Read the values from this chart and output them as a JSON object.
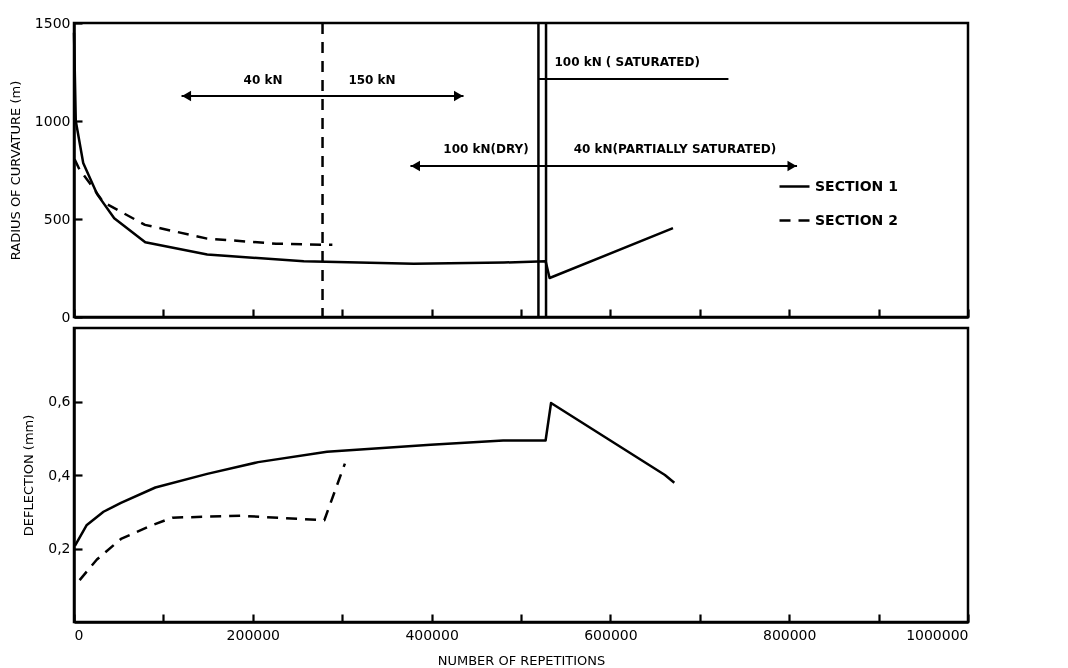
{
  "chart_data": [
    {
      "type": "line",
      "ylabel": "RADIUS OF CURVATURE (m)",
      "xlim": [
        0,
        1000000
      ],
      "xticks": [
        0,
        100000,
        200000,
        300000,
        400000,
        500000,
        600000,
        700000,
        800000,
        900000,
        1000000
      ],
      "ylim": [
        0,
        1500
      ],
      "yticks": [
        0,
        500,
        1000,
        1500
      ],
      "tick_labels": "y",
      "legend": "right",
      "grid": false,
      "series": [
        {
          "name": "SECTION 1",
          "color": "#000000",
          "line_style": "solid",
          "x": [
            0,
            2000,
            10300,
            25800,
            45000,
            79700,
            149000,
            257000,
            380000,
            481000,
            527500,
            532000,
            670000
          ],
          "values": [
            1450,
            1000,
            786,
            627,
            504,
            381,
            319,
            284,
            272,
            278,
            285,
            199,
            453
          ]
        },
        {
          "name": "SECTION 2",
          "color": "#000000",
          "line_style": "dashed",
          "x": [
            700,
            6200,
            17900,
            33000,
            79400,
            149000,
            226000,
            289000
          ],
          "values": [
            805,
            752,
            681,
            585,
            470,
            400,
            374,
            368
          ]
        }
      ],
      "ref_lines": [
        {
          "axis": "x",
          "value": 278000,
          "color": "#000000",
          "line_style": "dashed"
        },
        {
          "axis": "x",
          "value": 519500,
          "color": "#000000",
          "line_style": "solid"
        },
        {
          "axis": "x",
          "value": 528000,
          "color": "#000000",
          "line_style": "solid"
        }
      ],
      "annotations": [
        "40 kN",
        "150 kN",
        {
          "text": "100 kN ( SATURATED)",
          "x": 519500,
          "y": 1214
        },
        "100 kN(DRY)",
        "40 kN(PARTIALLY SATURATED)"
      ]
    },
    {
      "type": "line",
      "xlabel": "NUMBER OF REPETITIONS",
      "ylabel": "DEFLECTION (mm)",
      "xlim": [
        0,
        1000000
      ],
      "xticks": [
        0,
        {
          "value": 100000,
          "label": null
        },
        200000,
        {
          "value": 300000,
          "label": null
        },
        400000,
        {
          "value": 500000,
          "label": null
        },
        600000,
        {
          "value": 700000,
          "label": null
        },
        800000,
        {
          "value": 900000,
          "label": null
        },
        1000000
      ],
      "ylim": [
        0,
        0.8
      ],
      "yticks": [
        {
          "value": 0.2,
          "label": "0,2"
        },
        {
          "value": 0.4,
          "label": "0,4"
        },
        {
          "value": 0.6,
          "label": "0,6"
        }
      ],
      "grid": false,
      "series": [
        {
          "color": "#000000",
          "line_style": "solid",
          "x": [
            1000,
            14000,
            33000,
            52500,
            91000,
            149000,
            206000,
            283000,
            399000,
            480000,
            527500,
            533600,
            661000,
            671500
          ],
          "values": [
            0.207,
            0.263,
            0.3,
            0.324,
            0.366,
            0.403,
            0.435,
            0.463,
            0.482,
            0.494,
            0.494,
            0.596,
            0.4,
            0.379
          ]
        },
        {
          "color": "#000000",
          "line_style": "dashed",
          "x": [
            6300,
            25600,
            52500,
            87000,
            110000,
            187000,
            280000,
            303000
          ],
          "values": [
            0.114,
            0.17,
            0.226,
            0.263,
            0.284,
            0.289,
            0.277,
            0.431
          ]
        }
      ]
    }
  ]
}
